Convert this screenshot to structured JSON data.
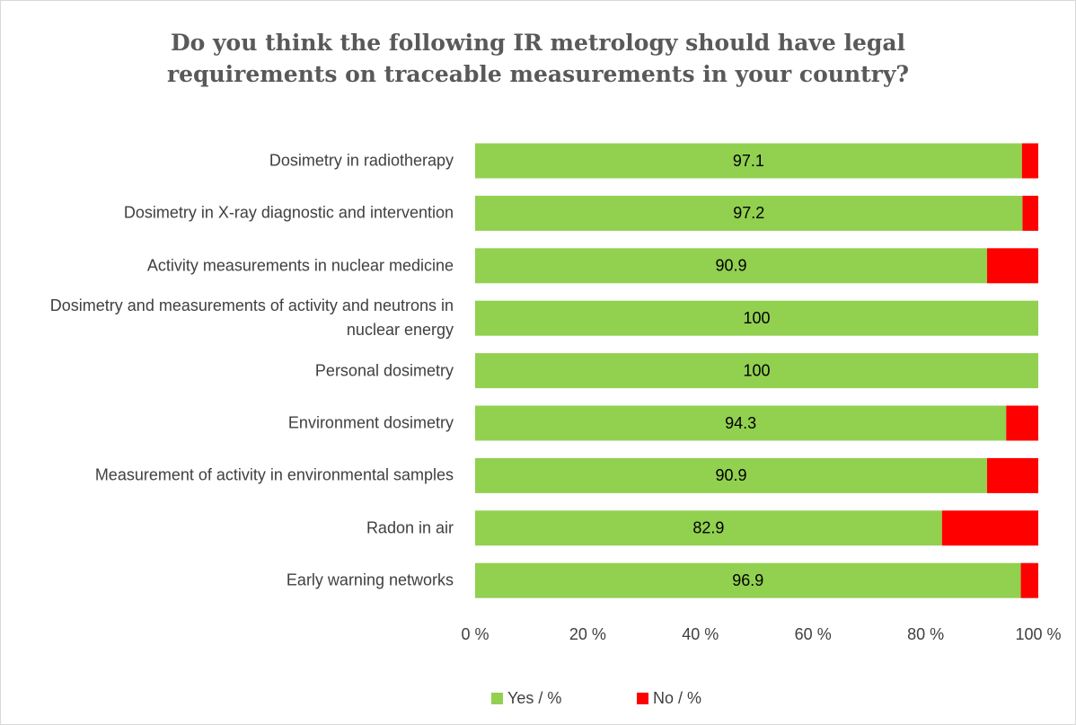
{
  "chart_data": {
    "type": "stacked_barh",
    "title": "Do you think the following IR metrology should have legal requirements on traceable measurements in your country?",
    "categories": [
      "Dosimetry in radiotherapy",
      "Dosimetry in X-ray diagnostic and intervention",
      "Activity measurements in nuclear medicine",
      "Dosimetry and measurements of activity and neutrons in nuclear energy",
      "Personal dosimetry",
      "Environment dosimetry",
      "Measurement of activity in environmental samples",
      "Radon in air",
      "Early warning networks"
    ],
    "series": [
      {
        "name": "Yes / %",
        "color": "#92d050",
        "values": [
          97.1,
          97.2,
          90.9,
          100,
          100,
          94.3,
          90.9,
          82.9,
          96.9
        ],
        "data_labels": true
      },
      {
        "name": "No / %",
        "color": "#ff0000",
        "values": [
          2.9,
          2.8,
          9.1,
          0,
          0,
          5.7,
          9.1,
          17.1,
          3.1
        ],
        "data_labels": false
      }
    ],
    "xlim": [
      0,
      100
    ],
    "xticks": [
      {
        "value": 0,
        "label": "0 %"
      },
      {
        "value": 20,
        "label": "20 %"
      },
      {
        "value": 40,
        "label": "40 %"
      },
      {
        "value": 60,
        "label": "60 %"
      },
      {
        "value": 80,
        "label": "80 %"
      },
      {
        "value": 100,
        "label": "100 %"
      }
    ],
    "grid": false,
    "legend": "bottom"
  }
}
